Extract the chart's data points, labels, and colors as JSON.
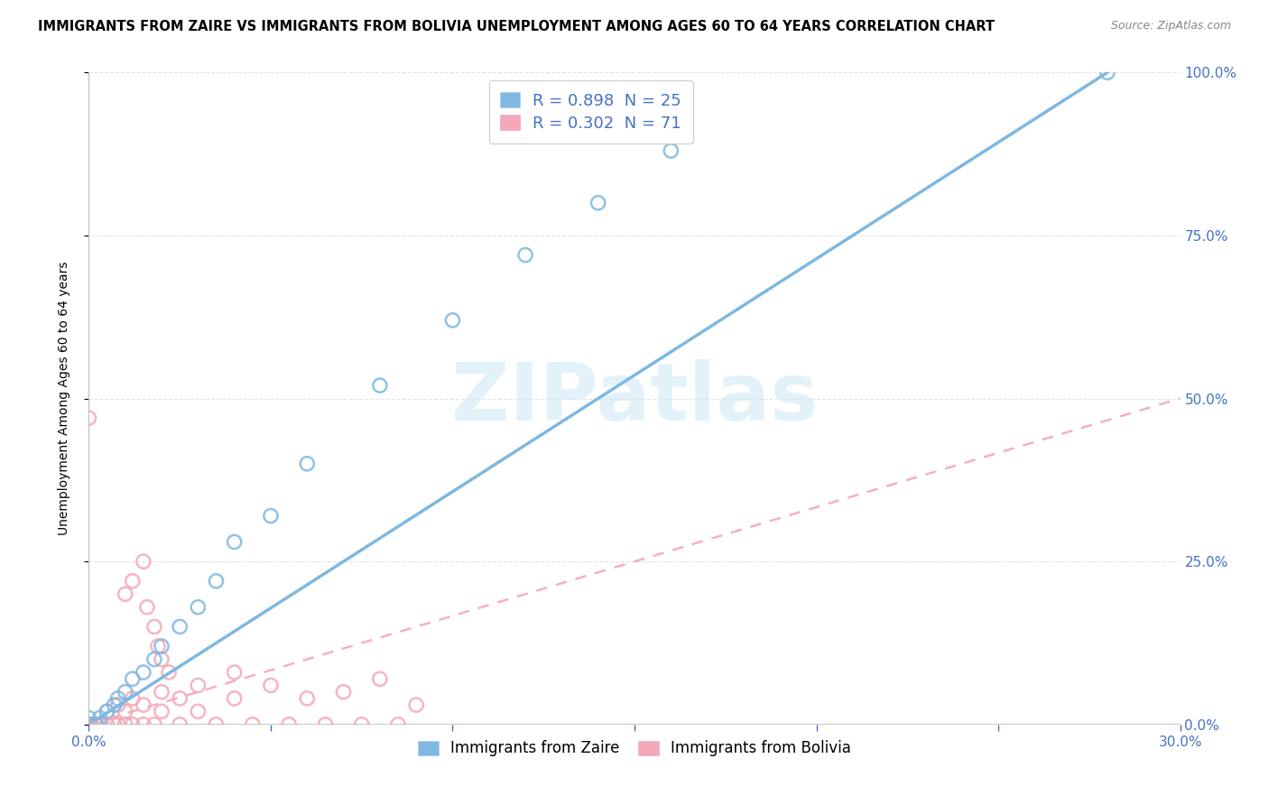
{
  "title": "IMMIGRANTS FROM ZAIRE VS IMMIGRANTS FROM BOLIVIA UNEMPLOYMENT AMONG AGES 60 TO 64 YEARS CORRELATION CHART",
  "source": "Source: ZipAtlas.com",
  "ylabel": "Unemployment Among Ages 60 to 64 years",
  "xlim": [
    0.0,
    0.3
  ],
  "ylim": [
    0.0,
    1.0
  ],
  "x_tick_labels": [
    "0.0%",
    "30.0%"
  ],
  "y_ticks_right": [
    0.0,
    0.25,
    0.5,
    0.75,
    1.0
  ],
  "y_tick_labels_right": [
    "0.0%",
    "25.0%",
    "50.0%",
    "75.0%",
    "100.0%"
  ],
  "zaire_color": "#7fb8e0",
  "bolivia_color": "#f4a8b8",
  "legend_R_zaire": "R = 0.898  N = 25",
  "legend_R_bolivia": "R = 0.302  N = 71",
  "zaire_x": [
    0.0,
    0.0,
    0.0,
    0.002,
    0.003,
    0.005,
    0.007,
    0.008,
    0.01,
    0.012,
    0.015,
    0.018,
    0.02,
    0.025,
    0.03,
    0.035,
    0.04,
    0.05,
    0.06,
    0.08,
    0.1,
    0.12,
    0.14,
    0.16,
    0.28
  ],
  "zaire_y": [
    0.0,
    0.0,
    0.01,
    0.0,
    0.01,
    0.02,
    0.03,
    0.04,
    0.05,
    0.07,
    0.08,
    0.1,
    0.12,
    0.15,
    0.18,
    0.22,
    0.28,
    0.32,
    0.4,
    0.52,
    0.62,
    0.72,
    0.8,
    0.88,
    1.0
  ],
  "bolivia_x": [
    0.0,
    0.0,
    0.0,
    0.0,
    0.0,
    0.0,
    0.0,
    0.0,
    0.0,
    0.0,
    0.0,
    0.0,
    0.0,
    0.0,
    0.0,
    0.0,
    0.0,
    0.0,
    0.0,
    0.0,
    0.0,
    0.0,
    0.0,
    0.0,
    0.0,
    0.0,
    0.0,
    0.0,
    0.0,
    0.0,
    0.002,
    0.003,
    0.005,
    0.005,
    0.007,
    0.008,
    0.008,
    0.01,
    0.01,
    0.012,
    0.012,
    0.015,
    0.015,
    0.018,
    0.02,
    0.02,
    0.025,
    0.025,
    0.03,
    0.03,
    0.035,
    0.04,
    0.04,
    0.045,
    0.05,
    0.055,
    0.06,
    0.065,
    0.07,
    0.075,
    0.08,
    0.085,
    0.09,
    0.01,
    0.012,
    0.015,
    0.016,
    0.018,
    0.019,
    0.02,
    0.022
  ],
  "bolivia_y": [
    0.0,
    0.0,
    0.0,
    0.0,
    0.0,
    0.0,
    0.0,
    0.0,
    0.0,
    0.0,
    0.0,
    0.0,
    0.0,
    0.0,
    0.0,
    0.0,
    0.0,
    0.0,
    0.0,
    0.0,
    0.0,
    0.0,
    0.0,
    0.0,
    0.0,
    0.0,
    0.0,
    0.0,
    0.0,
    0.47,
    0.0,
    0.0,
    0.0,
    0.02,
    0.0,
    0.0,
    0.03,
    0.0,
    0.02,
    0.0,
    0.04,
    0.0,
    0.03,
    0.0,
    0.05,
    0.02,
    0.0,
    0.04,
    0.06,
    0.02,
    0.0,
    0.04,
    0.08,
    0.0,
    0.06,
    0.0,
    0.04,
    0.0,
    0.05,
    0.0,
    0.07,
    0.0,
    0.03,
    0.2,
    0.22,
    0.25,
    0.18,
    0.15,
    0.12,
    0.1,
    0.08
  ],
  "zaire_line_x": [
    0.0,
    0.28
  ],
  "zaire_line_y": [
    0.0,
    1.0
  ],
  "bolivia_line_x": [
    0.0,
    0.3
  ],
  "bolivia_line_y": [
    0.0,
    0.5
  ],
  "background_color": "#ffffff",
  "grid_color": "#e0e0e0",
  "watermark_text": "ZIPatlas",
  "title_fontsize": 10.5,
  "tick_color": "#4472c4"
}
